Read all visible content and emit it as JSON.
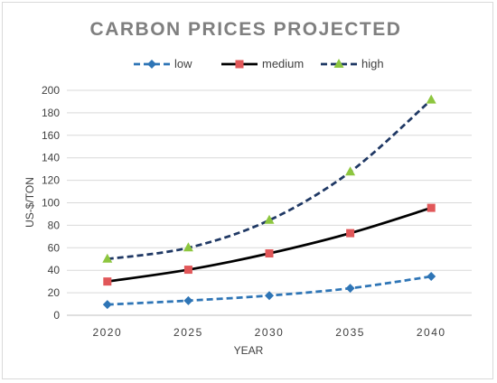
{
  "chart_data": {
    "type": "line",
    "title": "CARBON PRICES PROJECTED",
    "xlabel": "YEAR",
    "ylabel": "US-$/TON",
    "x": [
      "2020",
      "2025",
      "2030",
      "2035",
      "2040"
    ],
    "ylim": [
      0,
      200
    ],
    "yticks": [
      0,
      20,
      40,
      60,
      80,
      100,
      120,
      140,
      160,
      180,
      200
    ],
    "grid": true,
    "legend_position": "top",
    "series": [
      {
        "name": "low",
        "values": [
          9.5,
          13,
          17.5,
          24,
          34.5
        ],
        "color": "#2e75b6",
        "line": "dashed",
        "marker": "diamond"
      },
      {
        "name": "medium",
        "values": [
          30,
          40.5,
          55,
          73,
          95.5
        ],
        "color": "#000000",
        "line": "solid",
        "marker": "square",
        "marker_color": "#e15759"
      },
      {
        "name": "high",
        "values": [
          50,
          60,
          84.5,
          127.5,
          191.5
        ],
        "color": "#1f3864",
        "line": "dashed",
        "marker": "triangle",
        "marker_color": "#8dc63f"
      }
    ]
  }
}
